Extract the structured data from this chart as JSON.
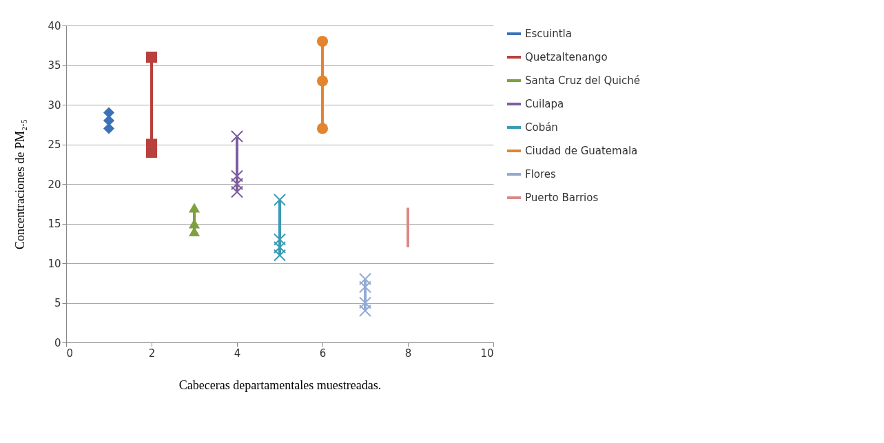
{
  "chart_data": {
    "type": "line",
    "xlabel": "Cabeceras departamentales muestreadas.",
    "ylabel": "Concentraciones de PM₂.₅",
    "xlim": [
      0,
      10
    ],
    "xticks": [
      0,
      2,
      4,
      6,
      8,
      10
    ],
    "ylim": [
      0,
      40
    ],
    "yticks": [
      0,
      5,
      10,
      15,
      20,
      25,
      30,
      35,
      40
    ],
    "grid": "y",
    "legend": "right",
    "series": [
      {
        "name": "Escuintla",
        "type": "scatter",
        "color": "#3a72b8",
        "marker": "diamond",
        "x": [
          1,
          1,
          1
        ],
        "values": [
          27,
          28,
          29
        ]
      },
      {
        "name": "Quetzaltenango",
        "color": "#b8403d",
        "marker": "square",
        "x": [
          2,
          2,
          2
        ],
        "values": [
          24,
          25,
          36
        ]
      },
      {
        "name": "Santa Cruz del Quiché",
        "color": "#7ea03e",
        "marker": "triangle",
        "x": [
          3,
          3,
          3
        ],
        "values": [
          14,
          15,
          17
        ]
      },
      {
        "name": "Cuilapa",
        "color": "#7c5ea0",
        "marker": "cross",
        "x": [
          4,
          4,
          4,
          4
        ],
        "values": [
          19,
          20,
          21,
          26
        ]
      },
      {
        "name": "Cobán",
        "color": "#3a9bb5",
        "marker": "cross",
        "x": [
          5,
          5,
          5,
          5
        ],
        "values": [
          11,
          12,
          13,
          18
        ]
      },
      {
        "name": "Ciudad de Guatemala",
        "color": "#e3852e",
        "marker": "circle",
        "x": [
          6,
          6,
          6
        ],
        "values": [
          27,
          33,
          38
        ]
      },
      {
        "name": "Flores",
        "color": "#94aad6",
        "marker": "cross",
        "x": [
          7,
          7,
          7,
          7
        ],
        "values": [
          4,
          5,
          7,
          8
        ]
      },
      {
        "name": "Puerto Barrios",
        "color": "#d98a88",
        "marker": "none",
        "x": [
          8,
          8
        ],
        "values": [
          12,
          17
        ]
      }
    ]
  }
}
